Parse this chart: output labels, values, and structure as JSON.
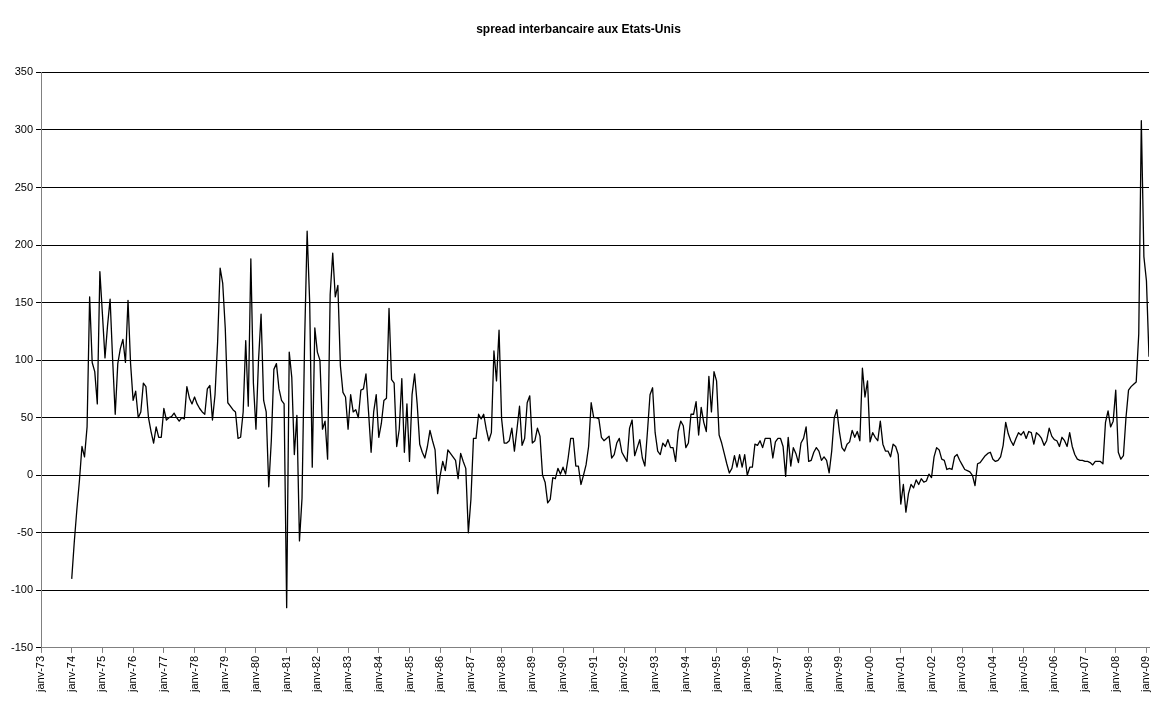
{
  "chart_data": {
    "type": "line",
    "title": "spread interbancaire aux Etats-Unis",
    "series": [
      {
        "color": "#000000",
        "x": [
          "1974-01",
          "1974-02",
          "1974-03",
          "1974-04",
          "1974-05",
          "1974-06",
          "1974-07",
          "1974-08",
          "1974-09",
          "1974-10",
          "1974-11",
          "1974-12",
          "1975-01",
          "1975-02",
          "1975-03",
          "1975-04",
          "1975-05",
          "1975-06",
          "1975-07",
          "1975-08",
          "1975-09",
          "1975-10",
          "1975-11",
          "1975-12",
          "1976-01",
          "1976-02",
          "1976-03",
          "1976-04",
          "1976-05",
          "1976-06",
          "1976-07",
          "1976-08",
          "1976-09",
          "1976-10",
          "1976-11",
          "1976-12",
          "1977-01",
          "1977-02",
          "1977-03",
          "1977-04",
          "1977-05",
          "1977-06",
          "1977-07",
          "1977-08",
          "1977-09",
          "1977-10",
          "1977-11",
          "1977-12",
          "1978-01",
          "1978-02",
          "1978-03",
          "1978-04",
          "1978-05",
          "1978-06",
          "1978-07",
          "1978-08",
          "1978-09",
          "1978-10",
          "1978-11",
          "1978-12",
          "1979-01",
          "1979-02",
          "1979-03",
          "1979-04",
          "1979-05",
          "1979-06",
          "1979-07",
          "1979-08",
          "1979-09",
          "1979-10",
          "1979-11",
          "1979-12",
          "1980-01",
          "1980-02",
          "1980-03",
          "1980-04",
          "1980-05",
          "1980-06",
          "1980-07",
          "1980-08",
          "1980-09",
          "1980-10",
          "1980-11",
          "1980-12",
          "1981-01",
          "1981-02",
          "1981-03",
          "1981-04",
          "1981-05",
          "1981-06",
          "1981-07",
          "1981-08",
          "1981-09",
          "1981-10",
          "1981-11",
          "1981-12",
          "1982-01",
          "1982-02",
          "1982-03",
          "1982-04",
          "1982-05",
          "1982-06",
          "1982-07",
          "1982-08",
          "1982-09",
          "1982-10",
          "1982-11",
          "1982-12",
          "1983-01",
          "1983-02",
          "1983-03",
          "1983-04",
          "1983-05",
          "1983-06",
          "1983-07",
          "1983-08",
          "1983-09",
          "1983-10",
          "1983-11",
          "1983-12",
          "1984-01",
          "1984-02",
          "1984-03",
          "1984-04",
          "1984-05",
          "1984-06",
          "1984-07",
          "1984-08",
          "1984-09",
          "1984-10",
          "1984-11",
          "1984-12",
          "1985-01",
          "1985-02",
          "1985-03",
          "1985-04",
          "1985-05",
          "1985-06",
          "1985-07",
          "1985-08",
          "1985-09",
          "1985-10",
          "1985-11",
          "1985-12",
          "1986-01",
          "1986-02",
          "1986-03",
          "1986-04",
          "1986-05",
          "1986-06",
          "1986-07",
          "1986-08",
          "1986-09",
          "1986-10",
          "1986-11",
          "1986-12",
          "1987-01",
          "1987-02",
          "1987-03",
          "1987-04",
          "1987-05",
          "1987-06",
          "1987-07",
          "1987-08",
          "1987-09",
          "1987-10",
          "1987-11",
          "1987-12",
          "1988-01",
          "1988-02",
          "1988-03",
          "1988-04",
          "1988-05",
          "1988-06",
          "1988-07",
          "1988-08",
          "1988-09",
          "1988-10",
          "1988-11",
          "1988-12",
          "1989-01",
          "1989-02",
          "1989-03",
          "1989-04",
          "1989-05",
          "1989-06",
          "1989-07",
          "1989-08",
          "1989-09",
          "1989-10",
          "1989-11",
          "1989-12",
          "1990-01",
          "1990-02",
          "1990-03",
          "1990-04",
          "1990-05",
          "1990-06",
          "1990-07",
          "1990-08",
          "1990-09",
          "1990-10",
          "1990-11",
          "1990-12",
          "1991-01",
          "1991-02",
          "1991-03",
          "1991-04",
          "1991-05",
          "1991-06",
          "1991-07",
          "1991-08",
          "1991-09",
          "1991-10",
          "1991-11",
          "1991-12",
          "1992-01",
          "1992-02",
          "1992-03",
          "1992-04",
          "1992-05",
          "1992-06",
          "1992-07",
          "1992-08",
          "1992-09",
          "1992-10",
          "1992-11",
          "1992-12",
          "1993-01",
          "1993-02",
          "1993-03",
          "1993-04",
          "1993-05",
          "1993-06",
          "1993-07",
          "1993-08",
          "1993-09",
          "1993-10",
          "1993-11",
          "1993-12",
          "1994-01",
          "1994-02",
          "1994-03",
          "1994-04",
          "1994-05",
          "1994-06",
          "1994-07",
          "1994-08",
          "1994-09",
          "1994-10",
          "1994-11",
          "1994-12",
          "1995-01",
          "1995-02",
          "1995-03",
          "1995-04",
          "1995-05",
          "1995-06",
          "1995-07",
          "1995-08",
          "1995-09",
          "1995-10",
          "1995-11",
          "1995-12",
          "1996-01",
          "1996-02",
          "1996-03",
          "1996-04",
          "1996-05",
          "1996-06",
          "1996-07",
          "1996-08",
          "1996-09",
          "1996-10",
          "1996-11",
          "1996-12",
          "1997-01",
          "1997-02",
          "1997-03",
          "1997-04",
          "1997-05",
          "1997-06",
          "1997-07",
          "1997-08",
          "1997-09",
          "1997-10",
          "1997-11",
          "1997-12",
          "1998-01",
          "1998-02",
          "1998-03",
          "1998-04",
          "1998-05",
          "1998-06",
          "1998-07",
          "1998-08",
          "1998-09",
          "1998-10",
          "1998-11",
          "1998-12",
          "1999-01",
          "1999-02",
          "1999-03",
          "1999-04",
          "1999-05",
          "1999-06",
          "1999-07",
          "1999-08",
          "1999-09",
          "1999-10",
          "1999-11",
          "1999-12",
          "2000-01",
          "2000-02",
          "2000-03",
          "2000-04",
          "2000-05",
          "2000-06",
          "2000-07",
          "2000-08",
          "2000-09",
          "2000-10",
          "2000-11",
          "2000-12",
          "2001-01",
          "2001-02",
          "2001-03",
          "2001-04",
          "2001-05",
          "2001-06",
          "2001-07",
          "2001-08",
          "2001-09",
          "2001-10",
          "2001-11",
          "2001-12",
          "2002-01",
          "2002-02",
          "2002-03",
          "2002-04",
          "2002-05",
          "2002-06",
          "2002-07",
          "2002-08",
          "2002-09",
          "2002-10",
          "2002-11",
          "2002-12",
          "2003-01",
          "2003-02",
          "2003-03",
          "2003-04",
          "2003-05",
          "2003-06",
          "2003-07",
          "2003-08",
          "2003-09",
          "2003-10",
          "2003-11",
          "2003-12",
          "2004-01",
          "2004-02",
          "2004-03",
          "2004-04",
          "2004-05",
          "2004-06",
          "2004-07",
          "2004-08",
          "2004-09",
          "2004-10",
          "2004-11",
          "2004-12",
          "2005-01",
          "2005-02",
          "2005-03",
          "2005-04",
          "2005-05",
          "2005-06",
          "2005-07",
          "2005-08",
          "2005-09",
          "2005-10",
          "2005-11",
          "2005-12",
          "2006-01",
          "2006-02",
          "2006-03",
          "2006-04",
          "2006-05",
          "2006-06",
          "2006-07",
          "2006-08",
          "2006-09",
          "2006-10",
          "2006-11",
          "2006-12",
          "2007-01",
          "2007-02",
          "2007-03",
          "2007-04",
          "2007-05",
          "2007-06",
          "2007-07",
          "2007-08",
          "2007-09",
          "2007-10",
          "2007-11",
          "2007-12",
          "2008-01",
          "2008-02",
          "2008-03",
          "2008-04",
          "2008-05",
          "2008-06",
          "2008-07",
          "2008-08",
          "2008-09",
          "2008-10",
          "2008-11",
          "2008-12",
          "2009-01",
          "2009-02"
        ],
        "values": [
          -90,
          -58,
          -30,
          -5,
          25,
          16,
          42,
          155,
          98,
          90,
          62,
          177,
          140,
          102,
          130,
          153,
          100,
          53,
          97,
          110,
          118,
          98,
          152,
          97,
          65,
          73,
          50,
          55,
          80,
          77,
          50,
          38,
          28,
          42,
          33,
          33,
          58,
          48,
          50,
          51,
          54,
          50,
          47,
          50,
          49,
          77,
          67,
          62,
          68,
          62,
          58,
          55,
          53,
          75,
          78,
          48,
          70,
          115,
          180,
          167,
          128,
          63,
          60,
          57,
          55,
          32,
          33,
          55,
          117,
          60,
          188,
          80,
          40,
          100,
          140,
          65,
          55,
          -10,
          30,
          92,
          97,
          75,
          65,
          62,
          -115,
          107,
          85,
          18,
          52,
          -57,
          -20,
          115,
          212,
          150,
          7,
          128,
          107,
          100,
          40,
          47,
          14,
          157,
          193,
          155,
          165,
          95,
          72,
          68,
          40,
          70,
          55,
          57,
          50,
          74,
          75,
          88,
          55,
          20,
          55,
          70,
          33,
          45,
          65,
          67,
          145,
          83,
          80,
          25,
          40,
          84,
          20,
          62,
          12,
          70,
          88,
          62,
          27,
          20,
          15,
          25,
          39,
          30,
          22,
          -16,
          0,
          12,
          4,
          22,
          19,
          16,
          13,
          -3,
          19,
          12,
          6,
          -50,
          -21,
          32,
          32,
          53,
          49,
          53,
          40,
          30,
          37,
          108,
          82,
          126,
          49,
          28,
          28,
          30,
          41,
          21,
          40,
          60,
          26,
          32,
          63,
          69,
          28,
          30,
          41,
          34,
          0,
          -6,
          -24,
          -21,
          -2,
          -3,
          6,
          1,
          7,
          1,
          15,
          32,
          32,
          8,
          8,
          -8,
          0,
          9,
          25,
          63,
          50,
          50,
          49,
          33,
          30,
          32,
          34,
          15,
          18,
          28,
          32,
          20,
          16,
          12,
          41,
          48,
          17,
          24,
          31,
          15,
          8,
          38,
          70,
          76,
          37,
          21,
          18,
          28,
          25,
          31,
          24,
          24,
          12,
          38,
          47,
          43,
          24,
          28,
          53,
          53,
          64,
          35,
          59,
          46,
          38,
          86,
          55,
          90,
          82,
          35,
          28,
          19,
          10,
          2,
          6,
          17,
          7,
          18,
          7,
          18,
          0,
          7,
          7,
          27,
          26,
          30,
          24,
          32,
          32,
          32,
          15,
          29,
          32,
          32,
          25,
          -1,
          33,
          8,
          24,
          19,
          11,
          28,
          32,
          42,
          12,
          13,
          20,
          24,
          21,
          13,
          16,
          13,
          2,
          21,
          50,
          57,
          38,
          24,
          21,
          27,
          29,
          39,
          33,
          38,
          30,
          93,
          68,
          82,
          29,
          37,
          33,
          30,
          47,
          27,
          21,
          21,
          16,
          27,
          25,
          18,
          -25,
          -8,
          -32,
          -16,
          -8,
          -11,
          -4,
          -8,
          -3,
          -6,
          -5,
          1,
          -2,
          16,
          24,
          22,
          14,
          13,
          5,
          6,
          5,
          16,
          18,
          13,
          9,
          5,
          4,
          3,
          0,
          -9,
          10,
          11,
          14,
          17,
          19,
          20,
          14,
          12,
          13,
          16,
          26,
          46,
          36,
          30,
          26,
          32,
          37,
          35,
          38,
          32,
          38,
          37,
          27,
          37,
          35,
          32,
          26,
          30,
          41,
          34,
          31,
          30,
          25,
          33,
          30,
          25,
          37,
          25,
          18,
          14,
          13,
          13,
          12,
          12,
          11,
          9,
          12,
          12,
          12,
          10,
          46,
          56,
          42,
          47,
          74,
          20,
          14,
          17,
          50,
          74,
          77,
          79,
          81,
          123,
          308,
          190,
          169,
          103
        ]
      }
    ],
    "xlim": [
      "1973-01",
      "2009-02"
    ],
    "xticks": [
      {
        "value": "1973-01",
        "label": "janv-73"
      },
      {
        "value": "1974-01",
        "label": "janv-74"
      },
      {
        "value": "1975-01",
        "label": "janv-75"
      },
      {
        "value": "1976-01",
        "label": "janv-76"
      },
      {
        "value": "1977-01",
        "label": "janv-77"
      },
      {
        "value": "1978-01",
        "label": "janv-78"
      },
      {
        "value": "1979-01",
        "label": "janv-79"
      },
      {
        "value": "1980-01",
        "label": "janv-80"
      },
      {
        "value": "1981-01",
        "label": "janv-81"
      },
      {
        "value": "1982-01",
        "label": "janv-82"
      },
      {
        "value": "1983-01",
        "label": "janv-83"
      },
      {
        "value": "1984-01",
        "label": "janv-84"
      },
      {
        "value": "1985-01",
        "label": "janv-85"
      },
      {
        "value": "1986-01",
        "label": "janv-86"
      },
      {
        "value": "1987-01",
        "label": "janv-87"
      },
      {
        "value": "1988-01",
        "label": "janv-88"
      },
      {
        "value": "1989-01",
        "label": "janv-89"
      },
      {
        "value": "1990-01",
        "label": "janv-90"
      },
      {
        "value": "1991-01",
        "label": "janv-91"
      },
      {
        "value": "1992-01",
        "label": "janv-92"
      },
      {
        "value": "1993-01",
        "label": "janv-93"
      },
      {
        "value": "1994-01",
        "label": "janv-94"
      },
      {
        "value": "1995-01",
        "label": "janv-95"
      },
      {
        "value": "1996-01",
        "label": "janv-96"
      },
      {
        "value": "1997-01",
        "label": "janv-97"
      },
      {
        "value": "1998-01",
        "label": "janv-98"
      },
      {
        "value": "1999-01",
        "label": "janv-99"
      },
      {
        "value": "2000-01",
        "label": "janv-00"
      },
      {
        "value": "2001-01",
        "label": "janv-01"
      },
      {
        "value": "2002-01",
        "label": "janv-02"
      },
      {
        "value": "2003-01",
        "label": "janv-03"
      },
      {
        "value": "2004-01",
        "label": "janv-04"
      },
      {
        "value": "2005-01",
        "label": "janv-05"
      },
      {
        "value": "2006-01",
        "label": "janv-06"
      },
      {
        "value": "2007-01",
        "label": "janv-07"
      },
      {
        "value": "2008-01",
        "label": "janv-08"
      },
      {
        "value": "2009-01",
        "label": "janv-09"
      }
    ],
    "ylim": [
      -150,
      350
    ],
    "yticks": [
      -150,
      -100,
      -50,
      0,
      50,
      100,
      150,
      200,
      250,
      300,
      350
    ],
    "grid": "y",
    "legend": false,
    "marker": "none",
    "line_style": "solid"
  }
}
